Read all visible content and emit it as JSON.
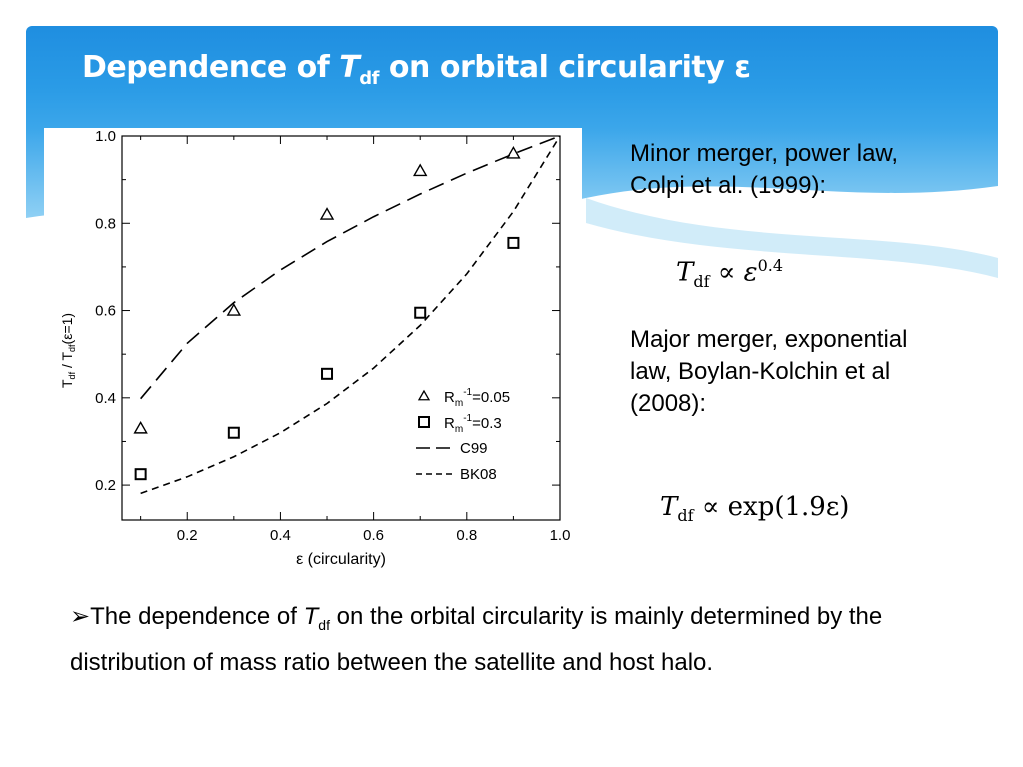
{
  "header": {
    "title_prefix": "Dependence of ",
    "title_var": "T",
    "title_sub": "df",
    "title_suffix": " on orbital circularity ε"
  },
  "notes": {
    "minor": "Minor merger, power law, Colpi et al. (1999):",
    "major": "Major merger, exponential law, Boylan-Kolchin et al (2008):"
  },
  "formulas": {
    "minor": {
      "var": "T",
      "sub": "df",
      "rel": "∝",
      "rhs_base": "ε",
      "rhs_exp": "0.4"
    },
    "major": {
      "var": "T",
      "sub": "df",
      "rel": "∝",
      "rhs": "exp(1.9ε)"
    }
  },
  "bullet": {
    "marker": "➢",
    "part1": "The dependence of ",
    "var": "T",
    "sub": "df",
    "part2": " on the orbital circularity is mainly determined by the distribution of mass ratio between the satellite and host halo."
  },
  "chart_data": {
    "type": "scatter",
    "xlabel": "ε (circularity)",
    "ylabel": "T_df / T_df(ε=1)",
    "xlim": [
      0.06,
      1.0
    ],
    "ylim": [
      0.12,
      1.0
    ],
    "xticks": [
      0.2,
      0.4,
      0.6,
      0.8,
      1.0
    ],
    "yticks": [
      0.2,
      0.4,
      0.6,
      0.8,
      1.0
    ],
    "xtick_labels": [
      "0.2",
      "0.4",
      "0.6",
      "0.8",
      "1.0"
    ],
    "ytick_labels": [
      "0.2",
      "0.4",
      "0.6",
      "0.8",
      "1.0"
    ],
    "legend_position": "bottom-right",
    "series": [
      {
        "name": "R_m^-1=0.05",
        "label_main": "R",
        "label_sub": "m",
        "label_sup": "-1",
        "label_val": "=0.05",
        "kind": "points",
        "marker": "triangle",
        "x": [
          0.1,
          0.3,
          0.5,
          0.7,
          0.9
        ],
        "y": [
          0.33,
          0.6,
          0.82,
          0.92,
          0.96
        ]
      },
      {
        "name": "R_m^-1=0.3",
        "label_main": "R",
        "label_sub": "m",
        "label_sup": "-1",
        "label_val": "=0.3",
        "kind": "points",
        "marker": "square",
        "x": [
          0.1,
          0.3,
          0.5,
          0.7,
          0.9
        ],
        "y": [
          0.225,
          0.32,
          0.455,
          0.595,
          0.755
        ]
      },
      {
        "name": "C99",
        "kind": "line",
        "dash": "long",
        "x": [
          0.1,
          0.2,
          0.3,
          0.4,
          0.5,
          0.6,
          0.7,
          0.8,
          0.9,
          1.0
        ],
        "y": [
          0.398,
          0.525,
          0.618,
          0.693,
          0.758,
          0.815,
          0.867,
          0.915,
          0.959,
          1.0
        ]
      },
      {
        "name": "BK08",
        "kind": "line",
        "dash": "short",
        "x": [
          0.1,
          0.2,
          0.3,
          0.4,
          0.5,
          0.6,
          0.7,
          0.8,
          0.9,
          1.0
        ],
        "y": [
          0.181,
          0.219,
          0.265,
          0.32,
          0.387,
          0.468,
          0.566,
          0.684,
          0.827,
          1.0
        ]
      }
    ]
  }
}
